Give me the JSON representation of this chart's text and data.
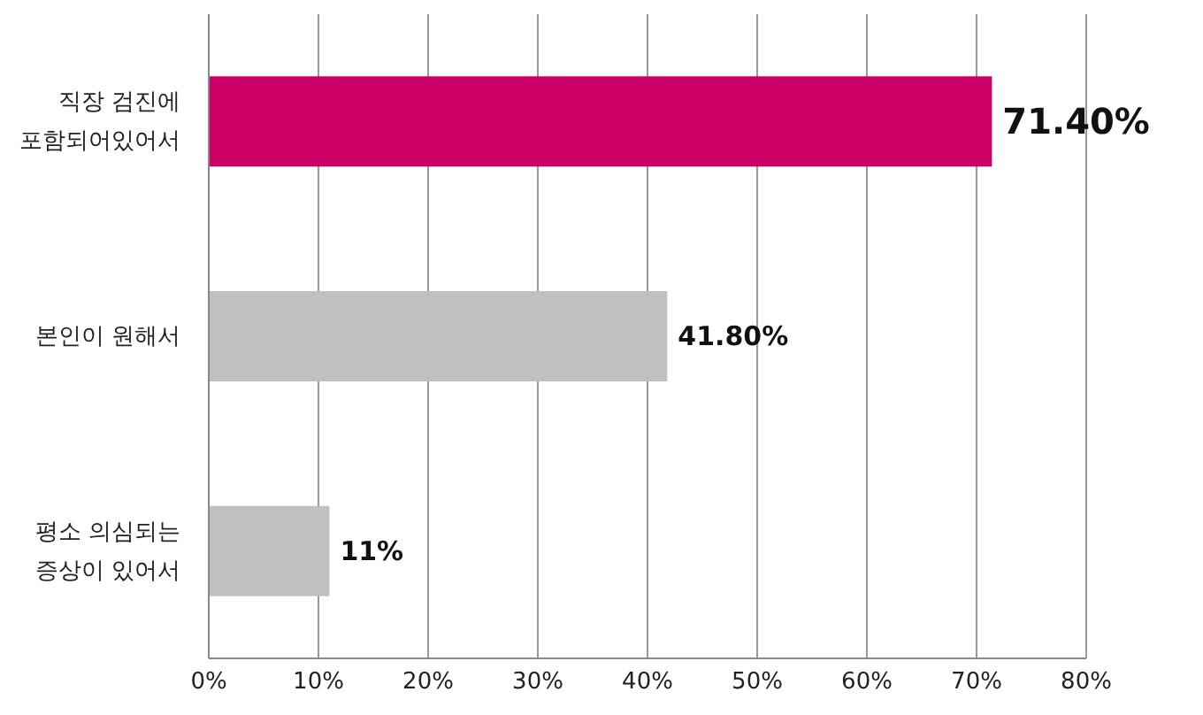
{
  "chart_data": {
    "type": "bar",
    "orientation": "horizontal",
    "categories": [
      "직장 검진에\n포함되어있어서",
      "본인이 원해서",
      "평소 의심되는\n증상이 있어서"
    ],
    "values": [
      71.4,
      41.8,
      11
    ],
    "colors": [
      "#cc0066",
      "#c0c0c0",
      "#c0c0c0"
    ],
    "value_labels": [
      "71.40%",
      "41.80%",
      "11%"
    ],
    "xlim": [
      0,
      80
    ],
    "xticks": [
      {
        "value": 0,
        "label": "0%"
      },
      {
        "value": 10,
        "label": "10%"
      },
      {
        "value": 20,
        "label": "20%"
      },
      {
        "value": 30,
        "label": "30%"
      },
      {
        "value": 40,
        "label": "40%"
      },
      {
        "value": 50,
        "label": "50%"
      },
      {
        "value": 60,
        "label": "60%"
      },
      {
        "value": 70,
        "label": "70%"
      },
      {
        "value": 80,
        "label": "80%"
      }
    ],
    "grid": "x",
    "legend": false
  }
}
